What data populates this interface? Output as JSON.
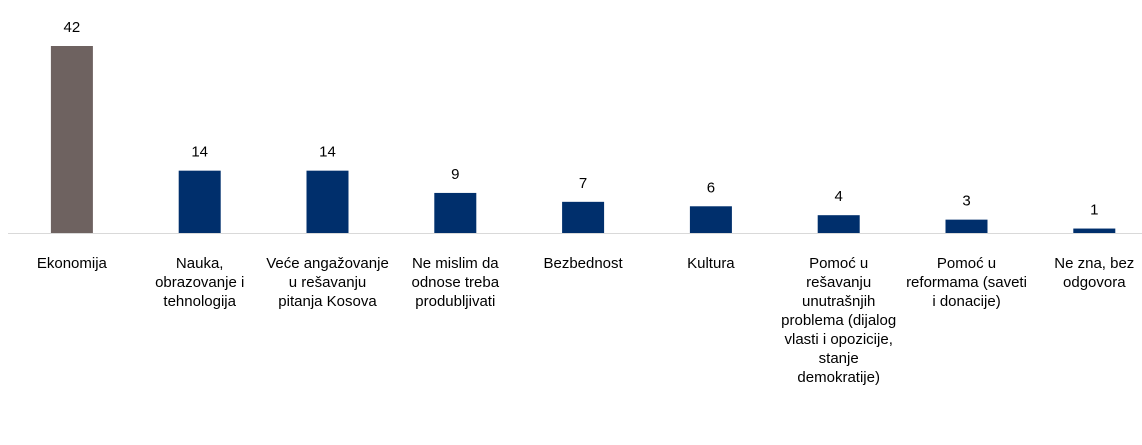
{
  "chart_data": {
    "type": "bar",
    "categories": [
      "Ekonomija",
      "Nauka, obrazovanje i tehnologija",
      "Veće angažovanje u rešavanju pitanja Kosova",
      "Ne mislim da odnose treba produbljivati",
      "Bezbednost",
      "Kultura",
      "Pomoć u rešavanju unutrašnjih problema (dijalog vlasti i opozicije, stanje demokratije)",
      "Pomoć u reformama (saveti i donacije)",
      "Ne zna, bez odgovora"
    ],
    "values": [
      42,
      14,
      14,
      9,
      7,
      6,
      4,
      3,
      1
    ],
    "colors": [
      "#6e6260",
      "#002f6c",
      "#002f6c",
      "#002f6c",
      "#002f6c",
      "#002f6c",
      "#002f6c",
      "#002f6c",
      "#002f6c"
    ],
    "ylim": [
      0,
      42
    ]
  }
}
